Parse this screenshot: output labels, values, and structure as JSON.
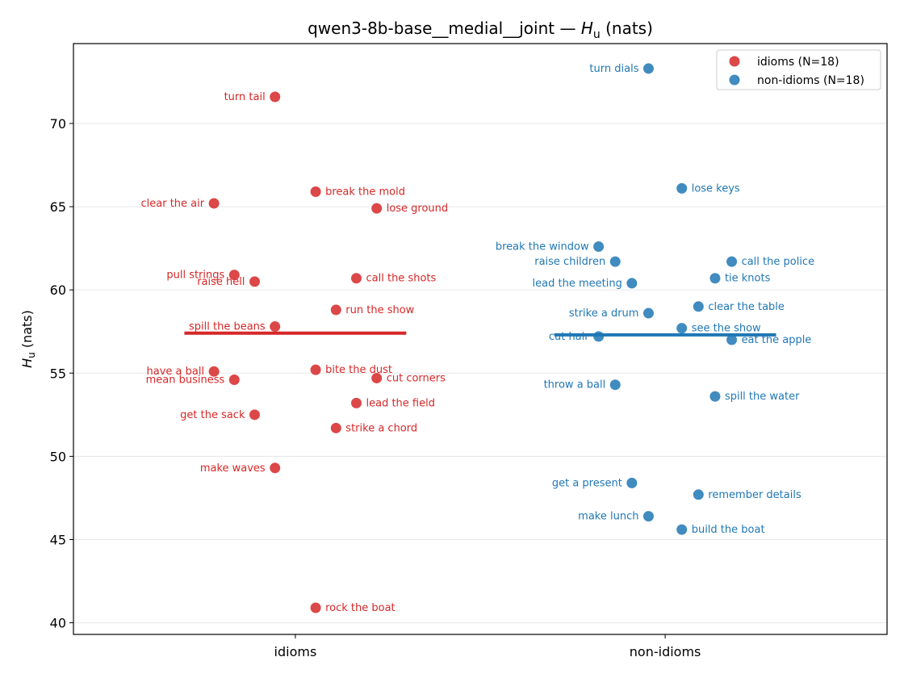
{
  "chart_data": {
    "type": "scatter",
    "title": "qwen3-8b-base__medial__joint — H_u (nats)",
    "title_main": "qwen3-8b-base__medial__joint — ",
    "title_symbol": "H",
    "title_sub": "u",
    "title_unit": " (nats)",
    "ylabel": "H_u (nats)",
    "ylabel_symbol": "H",
    "ylabel_sub": "u",
    "ylabel_unit": " (nats)",
    "ylim": [
      39.3,
      74.8
    ],
    "yticks": [
      40,
      45,
      50,
      55,
      60,
      65,
      70
    ],
    "categories": [
      "idioms",
      "non-idioms"
    ],
    "grid": "horizontal",
    "legend_position": "top-right",
    "series": [
      {
        "name": "idioms (N=18)",
        "category": "idioms",
        "color": "#d62728",
        "mean": 57.4,
        "points": [
          {
            "label": "turn tail",
            "x": -0.055,
            "y": 71.6
          },
          {
            "label": "break the mold",
            "x": 0.055,
            "y": 65.9
          },
          {
            "label": "clear the air",
            "x": -0.22,
            "y": 65.2
          },
          {
            "label": "lose ground",
            "x": 0.22,
            "y": 64.9
          },
          {
            "label": "pull strings",
            "x": -0.165,
            "y": 60.9
          },
          {
            "label": "call the shots",
            "x": 0.165,
            "y": 60.7
          },
          {
            "label": "raise hell",
            "x": -0.11,
            "y": 60.5
          },
          {
            "label": "run the show",
            "x": 0.11,
            "y": 58.8
          },
          {
            "label": "spill the beans",
            "x": -0.055,
            "y": 57.8
          },
          {
            "label": "bite the dust",
            "x": 0.055,
            "y": 55.2
          },
          {
            "label": "have a ball",
            "x": -0.22,
            "y": 55.1
          },
          {
            "label": "cut corners",
            "x": 0.22,
            "y": 54.7
          },
          {
            "label": "mean business",
            "x": -0.165,
            "y": 54.6
          },
          {
            "label": "lead the field",
            "x": 0.165,
            "y": 53.2
          },
          {
            "label": "get the sack",
            "x": -0.11,
            "y": 52.5
          },
          {
            "label": "strike a chord",
            "x": 0.11,
            "y": 51.7
          },
          {
            "label": "make waves",
            "x": -0.055,
            "y": 49.3
          },
          {
            "label": "rock the boat",
            "x": 0.055,
            "y": 40.9
          }
        ]
      },
      {
        "name": "non-idioms (N=18)",
        "category": "non-idioms",
        "color": "#1f77b4",
        "mean": 57.3,
        "points": [
          {
            "label": "turn dials",
            "x": -0.045,
            "y": 73.3
          },
          {
            "label": "lose keys",
            "x": 0.045,
            "y": 66.1
          },
          {
            "label": "break the window",
            "x": -0.18,
            "y": 62.6
          },
          {
            "label": "call the police",
            "x": 0.18,
            "y": 61.7
          },
          {
            "label": "raise children",
            "x": -0.135,
            "y": 61.7
          },
          {
            "label": "tie knots",
            "x": 0.135,
            "y": 60.7
          },
          {
            "label": "lead the meeting",
            "x": -0.09,
            "y": 60.4
          },
          {
            "label": "clear the table",
            "x": 0.09,
            "y": 59.0
          },
          {
            "label": "strike a drum",
            "x": -0.045,
            "y": 58.6
          },
          {
            "label": "see the show",
            "x": 0.045,
            "y": 57.7
          },
          {
            "label": "cut hair",
            "x": -0.18,
            "y": 57.2
          },
          {
            "label": "eat the apple",
            "x": 0.18,
            "y": 57.0
          },
          {
            "label": "throw a ball",
            "x": -0.135,
            "y": 54.3
          },
          {
            "label": "spill the water",
            "x": 0.135,
            "y": 53.6
          },
          {
            "label": "get a present",
            "x": -0.09,
            "y": 48.4
          },
          {
            "label": "remember details",
            "x": 0.09,
            "y": 47.7
          },
          {
            "label": "make lunch",
            "x": -0.045,
            "y": 46.4
          },
          {
            "label": "build the boat",
            "x": 0.045,
            "y": 45.6
          }
        ]
      }
    ]
  }
}
